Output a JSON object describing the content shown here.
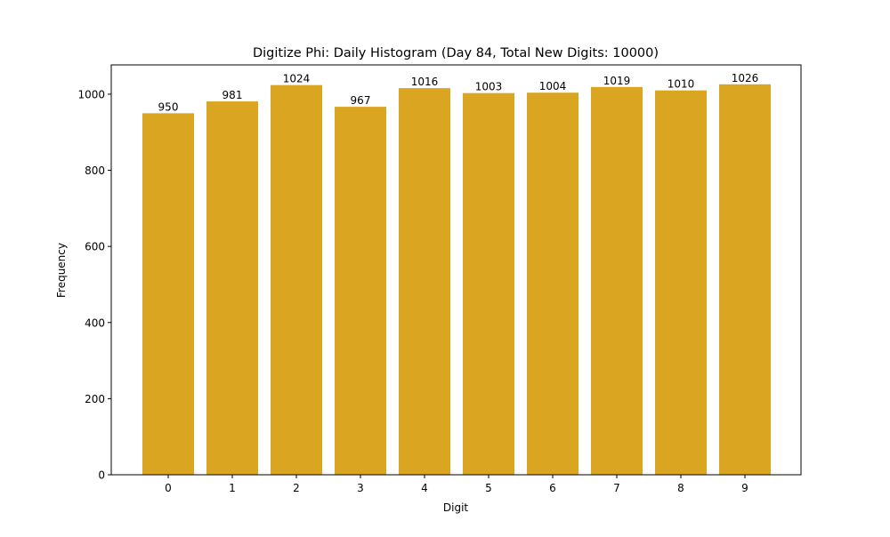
{
  "chart_data": {
    "type": "bar",
    "title": "Digitize Phi: Daily Histogram (Day 84, Total New Digits: 10000)",
    "xlabel": "Digit",
    "ylabel": "Frequency",
    "categories": [
      "0",
      "1",
      "2",
      "3",
      "4",
      "5",
      "6",
      "7",
      "8",
      "9"
    ],
    "values": [
      950,
      981,
      1024,
      967,
      1016,
      1003,
      1004,
      1019,
      1010,
      1026
    ],
    "data_labels": [
      "950",
      "981",
      "1024",
      "967",
      "1016",
      "1003",
      "1004",
      "1019",
      "1010",
      "1026"
    ],
    "yticks": [
      0,
      200,
      400,
      600,
      800,
      1000
    ],
    "ylim": [
      0,
      1077
    ],
    "bar_color": "#DAA520",
    "grid": false,
    "legend": null
  }
}
